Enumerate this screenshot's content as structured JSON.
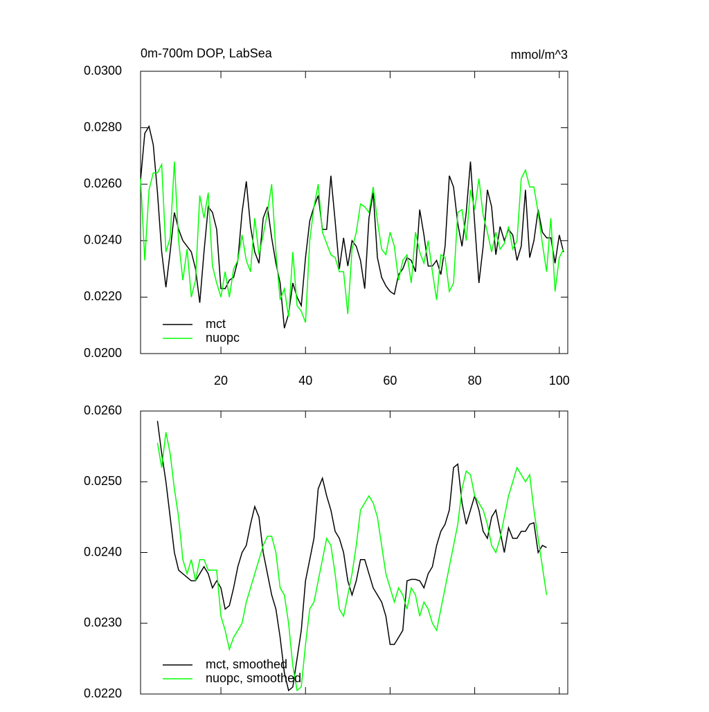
{
  "chart_data": [
    {
      "type": "line",
      "title": "0m-700m DOP, LabSea",
      "y_unit_label": "mmol/m^3",
      "x": [
        1,
        2,
        3,
        4,
        5,
        6,
        7,
        8,
        9,
        10,
        11,
        12,
        13,
        14,
        15,
        16,
        17,
        18,
        19,
        20,
        21,
        22,
        23,
        24,
        25,
        26,
        27,
        28,
        29,
        30,
        31,
        32,
        33,
        34,
        35,
        36,
        37,
        38,
        39,
        40,
        41,
        42,
        43,
        44,
        45,
        46,
        47,
        48,
        49,
        50,
        51,
        52,
        53,
        54,
        55,
        56,
        57,
        58,
        59,
        60,
        61,
        62,
        63,
        64,
        65,
        66,
        67,
        68,
        69,
        70,
        71,
        72,
        73,
        74,
        75,
        76,
        77,
        78,
        79,
        80,
        81,
        82,
        83,
        84,
        85,
        86,
        87,
        88,
        89,
        90,
        91,
        92,
        93,
        94,
        95,
        96,
        97,
        98,
        99,
        100,
        101
      ],
      "series": [
        {
          "name": "mct",
          "color": "#000000",
          "values": [
            0.02615,
            0.0278,
            0.02805,
            0.0274,
            0.0257,
            0.0236,
            0.02235,
            0.0236,
            0.025,
            0.0244,
            0.024,
            0.0238,
            0.0236,
            0.023,
            0.0218,
            0.0236,
            0.0252,
            0.025,
            0.0244,
            0.0223,
            0.0223,
            0.0226,
            0.0227,
            0.0233,
            0.025,
            0.0261,
            0.0245,
            0.0236,
            0.0232,
            0.0248,
            0.0252,
            0.0241,
            0.0232,
            0.0225,
            0.0209,
            0.0214,
            0.0225,
            0.022,
            0.0217,
            0.0234,
            0.0247,
            0.0252,
            0.0256,
            0.0244,
            0.0244,
            0.0263,
            0.0247,
            0.023,
            0.0241,
            0.0231,
            0.024,
            0.0238,
            0.0233,
            0.0223,
            0.0248,
            0.0257,
            0.0234,
            0.0227,
            0.0224,
            0.0222,
            0.0221,
            0.0228,
            0.023,
            0.0234,
            0.0233,
            0.0229,
            0.0251,
            0.0242,
            0.0231,
            0.0231,
            0.0233,
            0.0228,
            0.0238,
            0.0263,
            0.0259,
            0.0246,
            0.0238,
            0.025,
            0.0268,
            0.0246,
            0.0225,
            0.0238,
            0.0258,
            0.0252,
            0.0235,
            0.0245,
            0.024,
            0.0244,
            0.0242,
            0.0233,
            0.0238,
            0.0258,
            0.0234,
            0.024,
            0.0251,
            0.0243,
            0.0241,
            0.0241,
            0.0232,
            0.0242,
            0.0236
          ]
        },
        {
          "name": "nuopc",
          "color": "#00ff00",
          "values": [
            0.0262,
            0.0233,
            0.0258,
            0.0264,
            0.0264,
            0.0267,
            0.0236,
            0.0241,
            0.0268,
            0.024,
            0.0226,
            0.0237,
            0.022,
            0.0226,
            0.0256,
            0.0248,
            0.0257,
            0.0231,
            0.0225,
            0.022,
            0.0229,
            0.022,
            0.023,
            0.0233,
            0.0242,
            0.0233,
            0.0229,
            0.0248,
            0.0235,
            0.0242,
            0.025,
            0.026,
            0.0236,
            0.0219,
            0.0223,
            0.0213,
            0.0236,
            0.0217,
            0.0215,
            0.0211,
            0.024,
            0.0252,
            0.026,
            0.0243,
            0.0239,
            0.0235,
            0.0234,
            0.0229,
            0.0229,
            0.0214,
            0.0237,
            0.0243,
            0.0253,
            0.0252,
            0.025,
            0.0259,
            0.0247,
            0.0237,
            0.0235,
            0.0243,
            0.0238,
            0.0226,
            0.0233,
            0.0235,
            0.0225,
            0.0243,
            0.0236,
            0.0232,
            0.024,
            0.0229,
            0.0219,
            0.0235,
            0.0234,
            0.0222,
            0.0225,
            0.025,
            0.0251,
            0.024,
            0.0258,
            0.0251,
            0.0262,
            0.0249,
            0.0243,
            0.0236,
            0.0243,
            0.0237,
            0.0239,
            0.0245,
            0.0237,
            0.024,
            0.0262,
            0.0265,
            0.0259,
            0.0259,
            0.025,
            0.0239,
            0.0229,
            0.0248,
            0.0222,
            0.0234,
            0.0237
          ]
        }
      ],
      "xlim": [
        1,
        102
      ],
      "xticks": [
        20,
        40,
        60,
        80,
        100
      ],
      "xtick_labels": true,
      "ylim": [
        0.02,
        0.03
      ],
      "yticks": [
        {
          "value": 0.02,
          "label": "0.0200"
        },
        {
          "value": 0.022,
          "label": "0.0220"
        },
        {
          "value": 0.024,
          "label": "0.0240"
        },
        {
          "value": 0.026,
          "label": "0.0260"
        },
        {
          "value": 0.028,
          "label": "0.0280"
        },
        {
          "value": 0.03,
          "label": "0.0300"
        }
      ],
      "grid": false,
      "legend": "lower-left"
    },
    {
      "type": "line",
      "x": [
        5,
        6,
        7,
        8,
        9,
        10,
        11,
        12,
        13,
        14,
        15,
        16,
        17,
        18,
        19,
        20,
        21,
        22,
        23,
        24,
        25,
        26,
        27,
        28,
        29,
        30,
        31,
        32,
        33,
        34,
        35,
        36,
        37,
        38,
        39,
        40,
        41,
        42,
        43,
        44,
        45,
        46,
        47,
        48,
        49,
        50,
        51,
        52,
        53,
        54,
        55,
        56,
        57,
        58,
        59,
        60,
        61,
        62,
        63,
        64,
        65,
        66,
        67,
        68,
        69,
        70,
        71,
        72,
        73,
        74,
        75,
        76,
        77,
        78,
        79,
        80,
        81,
        82,
        83,
        84,
        85,
        86,
        87,
        88,
        89,
        90,
        91,
        92,
        93,
        94,
        95,
        96,
        97
      ],
      "series": [
        {
          "name": "mct, smoothed",
          "color": "#000000",
          "values": [
            0.02586,
            0.0254,
            0.025,
            0.0245,
            0.024,
            0.02375,
            0.0237,
            0.02365,
            0.0236,
            0.0236,
            0.0237,
            0.0238,
            0.0237,
            0.0235,
            0.0236,
            0.0235,
            0.0232,
            0.02325,
            0.0235,
            0.0238,
            0.024,
            0.0241,
            0.0244,
            0.02465,
            0.0245,
            0.024,
            0.0237,
            0.0234,
            0.0232,
            0.0228,
            0.0223,
            0.02205,
            0.0221,
            0.0225,
            0.0229,
            0.0236,
            0.0239,
            0.0242,
            0.0249,
            0.02505,
            0.0248,
            0.0246,
            0.0243,
            0.0242,
            0.024,
            0.0236,
            0.0234,
            0.0236,
            0.0239,
            0.0239,
            0.0237,
            0.0235,
            0.0234,
            0.0233,
            0.0231,
            0.0227,
            0.0227,
            0.0228,
            0.0229,
            0.0236,
            0.02362,
            0.02362,
            0.0236,
            0.0235,
            0.0237,
            0.0238,
            0.0241,
            0.0243,
            0.0244,
            0.0246,
            0.0252,
            0.02525,
            0.0247,
            0.0244,
            0.0246,
            0.0248,
            0.0246,
            0.0243,
            0.0242,
            0.0245,
            0.0246,
            0.0243,
            0.024,
            0.02435,
            0.0242,
            0.0242,
            0.0243,
            0.0243,
            0.0244,
            0.02442,
            0.024,
            0.0241,
            0.02407
          ]
        },
        {
          "name": "nuopc, smoothed",
          "color": "#00ff00",
          "values": [
            0.02555,
            0.0252,
            0.0257,
            0.0254,
            0.0249,
            0.0245,
            0.0239,
            0.0237,
            0.0239,
            0.0236,
            0.0239,
            0.0239,
            0.02375,
            0.02375,
            0.02375,
            0.0231,
            0.0229,
            0.02263,
            0.0228,
            0.0229,
            0.023,
            0.0233,
            0.0235,
            0.0237,
            0.0239,
            0.0241,
            0.02423,
            0.02423,
            0.024,
            0.0235,
            0.0234,
            0.023,
            0.0224,
            0.02205,
            0.0221,
            0.0227,
            0.0232,
            0.0233,
            0.0236,
            0.0239,
            0.0242,
            0.0241,
            0.0237,
            0.0232,
            0.0231,
            0.0234,
            0.0237,
            0.0241,
            0.0246,
            0.0247,
            0.0248,
            0.0247,
            0.0245,
            0.0241,
            0.0237,
            0.0235,
            0.0233,
            0.0235,
            0.0234,
            0.0232,
            0.0235,
            0.0234,
            0.0231,
            0.0233,
            0.0232,
            0.023,
            0.0229,
            0.0232,
            0.0235,
            0.0238,
            0.0241,
            0.0244,
            0.0249,
            0.02515,
            0.0251,
            0.0248,
            0.0247,
            0.0246,
            0.0244,
            0.0241,
            0.024,
            0.0242,
            0.0245,
            0.0248,
            0.025,
            0.0252,
            0.0251,
            0.025,
            0.0251,
            0.0246,
            0.0242,
            0.0238,
            0.0234
          ]
        }
      ],
      "xlim": [
        1,
        102
      ],
      "xticks": [
        20,
        40,
        60,
        80,
        100
      ],
      "xtick_labels": false,
      "ylim": [
        0.022,
        0.026
      ],
      "yticks": [
        {
          "value": 0.022,
          "label": "0.0220"
        },
        {
          "value": 0.023,
          "label": "0.0230"
        },
        {
          "value": 0.024,
          "label": "0.0240"
        },
        {
          "value": 0.025,
          "label": "0.0250"
        },
        {
          "value": 0.026,
          "label": "0.0260"
        }
      ],
      "grid": false,
      "legend": "lower-left"
    }
  ]
}
